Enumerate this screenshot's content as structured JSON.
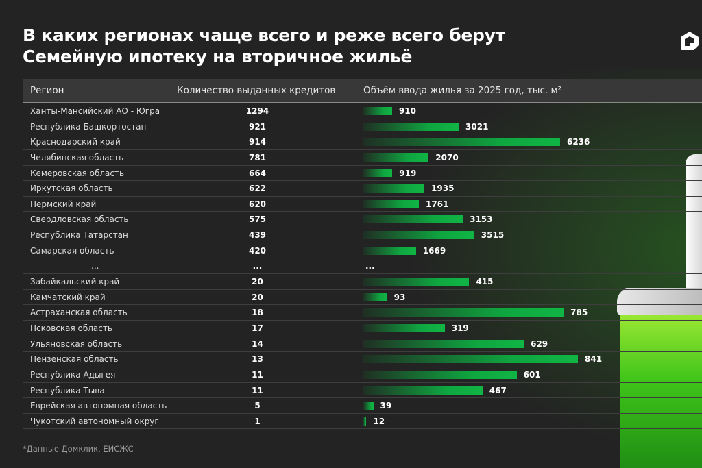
{
  "title_lines": [
    "В каких регионах чаще всего и реже всего берут",
    "Семейную ипотеку на вторичное жильё"
  ],
  "logo": "domclick-house-logo",
  "footnote": "*Данные Домклик, ЕИСЖС",
  "colors": {
    "background": "#232323",
    "bar": "#10b545",
    "header": "#383838"
  },
  "chart_data": {
    "type": "table",
    "columns": [
      "Регион",
      "Количество выданных кредитов",
      "Объём ввода жилья за 2025 год, тыс. м²"
    ],
    "top": [
      {
        "region": "Ханты-Мансийский АО - Югра",
        "loans": "1294",
        "housing": 910
      },
      {
        "region": "Республика Башкортостан",
        "loans": "921",
        "housing": 3021
      },
      {
        "region": "Краснодарский край",
        "loans": "914",
        "housing": 6236
      },
      {
        "region": "Челябинская область",
        "loans": "781",
        "housing": 2070
      },
      {
        "region": "Кемеровская область",
        "loans": "664",
        "housing": 919
      },
      {
        "region": "Иркутская область",
        "loans": "622",
        "housing": 1935
      },
      {
        "region": "Пермский край",
        "loans": "620",
        "housing": 1761
      },
      {
        "region": "Свердловская область",
        "loans": "575",
        "housing": 3153
      },
      {
        "region": "Республика Татарстан",
        "loans": "439",
        "housing": 3515
      },
      {
        "region": "Самарская область",
        "loans": "420",
        "housing": 1669
      }
    ],
    "ellipsis": {
      "region": "...",
      "loans": "...",
      "housing": "..."
    },
    "bottom": [
      {
        "region": "Забайкальский край",
        "loans": "20",
        "housing": 415
      },
      {
        "region": "Камчатский край",
        "loans": "20",
        "housing": 93
      },
      {
        "region": "Астраханская область",
        "loans": "18",
        "housing": 785
      },
      {
        "region": "Псковская область",
        "loans": "17",
        "housing": 319
      },
      {
        "region": "Ульяновская область",
        "loans": "14",
        "housing": 629
      },
      {
        "region": "Пензенская область",
        "loans": "13",
        "housing": 841
      },
      {
        "region": "Республика Адыгея",
        "loans": "11",
        "housing": 601
      },
      {
        "region": "Республика Тыва",
        "loans": "11",
        "housing": 467
      },
      {
        "region": "Еврейская автономная область",
        "loans": "5",
        "housing": 39
      },
      {
        "region": "Чукотский автономный округ",
        "loans": "1",
        "housing": 12
      }
    ]
  }
}
